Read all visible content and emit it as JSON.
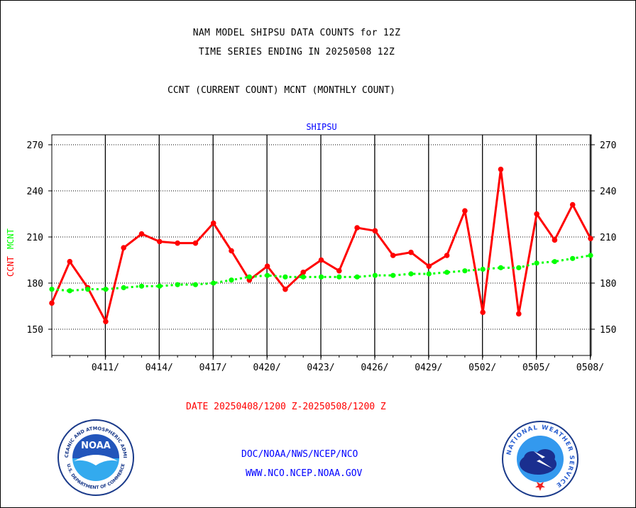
{
  "header": {
    "title_line1": "NAM MODEL SHIPSU DATA COUNTS for 12Z",
    "title_line2": "TIME SERIES ENDING IN 20250508 12Z",
    "subtitle": "CCNT (CURRENT COUNT) MCNT (MONTHLY COUNT)"
  },
  "footer": {
    "date_range": "DATE 20250408/1200 Z-20250508/1200 Z",
    "org_line": "DOC/NOAA/NWS/NCEP/NCO",
    "url_line": "WWW.NCO.NCEP.NOAA.GOV"
  },
  "logos": {
    "noaa_text": "NOAA",
    "noaa_ring_top": "NATIONAL OCEANIC AND ATMOSPHERIC ADMINISTRATION",
    "noaa_ring_bottom": "U.S. DEPARTMENT OF COMMERCE",
    "nws_ring": "NATIONAL WEATHER SERVICE"
  },
  "colors": {
    "ccnt": "#ff0000",
    "mcnt": "#00ff00",
    "plot_title": "#0000ff",
    "footer_org": "#0000ff",
    "date_range": "#ff0000"
  },
  "chart_data": {
    "type": "line",
    "title": "SHIPSU",
    "ylabel_parts": [
      "CCNT",
      "MCNT"
    ],
    "ylim": [
      135,
      277
    ],
    "yticks": [
      150,
      180,
      210,
      240,
      270
    ],
    "x_tick_labels": [
      "0411/",
      "0414/",
      "0417/",
      "0420/",
      "0423/",
      "0426/",
      "0429/",
      "0502/",
      "0505/",
      "0508/"
    ],
    "x_start": "2025-04-08T12:00Z",
    "x_end": "2025-05-08T12:00Z",
    "grid": true,
    "x": [
      "2025-04-08",
      "2025-04-09",
      "2025-04-10",
      "2025-04-11",
      "2025-04-12",
      "2025-04-13",
      "2025-04-14",
      "2025-04-15",
      "2025-04-16",
      "2025-04-17",
      "2025-04-18",
      "2025-04-19",
      "2025-04-20",
      "2025-04-21",
      "2025-04-22",
      "2025-04-23",
      "2025-04-24",
      "2025-04-25",
      "2025-04-26",
      "2025-04-27",
      "2025-04-28",
      "2025-04-29",
      "2025-04-30",
      "2025-05-01",
      "2025-05-02",
      "2025-05-03",
      "2025-05-04",
      "2025-05-05",
      "2025-05-06",
      "2025-05-07",
      "2025-05-08"
    ],
    "series": [
      {
        "name": "CCNT",
        "values": [
          167,
          194,
          177,
          155,
          203,
          212,
          207,
          206,
          206,
          219,
          201,
          182,
          191,
          176,
          187,
          195,
          188,
          216,
          214,
          198,
          200,
          191,
          198,
          227,
          161,
          254,
          160,
          225,
          208,
          231,
          209
        ]
      },
      {
        "name": "MCNT",
        "values": [
          176,
          175,
          176,
          176,
          177,
          178,
          178,
          179,
          179,
          180,
          182,
          184,
          185,
          184,
          184,
          184,
          184,
          184,
          185,
          185,
          186,
          186,
          187,
          188,
          189,
          190,
          190,
          193,
          194,
          196,
          198
        ]
      }
    ]
  }
}
